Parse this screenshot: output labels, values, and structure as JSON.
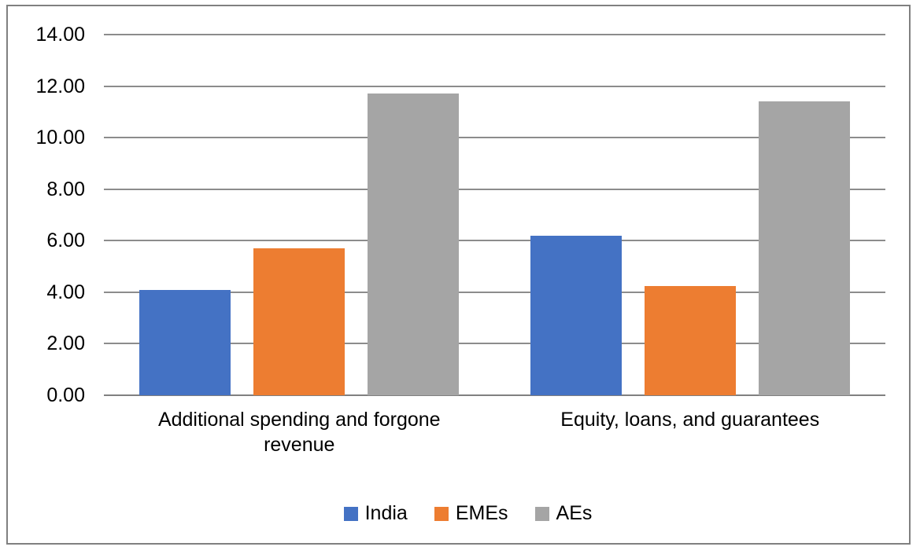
{
  "chart_data": {
    "type": "bar",
    "title": "",
    "xlabel": "",
    "ylabel": "",
    "categories": [
      "Additional spending and forgone\nrevenue",
      "Equity, loans, and guarantees"
    ],
    "series": [
      {
        "name": "India",
        "color": "#4472C4",
        "values": [
          4.1,
          6.2
        ]
      },
      {
        "name": "EMEs",
        "color": "#ED7D31",
        "values": [
          5.7,
          4.25
        ]
      },
      {
        "name": "AEs",
        "color": "#A5A5A5",
        "values": [
          11.7,
          11.4
        ]
      }
    ],
    "ylim": [
      0,
      14
    ],
    "ytick_step": 2,
    "ytick_labels": [
      "0.00",
      "2.00",
      "4.00",
      "6.00",
      "8.00",
      "10.00",
      "12.00",
      "14.00"
    ],
    "grid": true,
    "legend_position": "bottom",
    "legend_entries": [
      "India",
      "EMEs",
      "AEs"
    ]
  },
  "colors": {
    "gridline": "#8C8C8C",
    "axis": "#808080",
    "frame_border": "#808080",
    "text": "#000000",
    "background": "#FFFFFF"
  }
}
